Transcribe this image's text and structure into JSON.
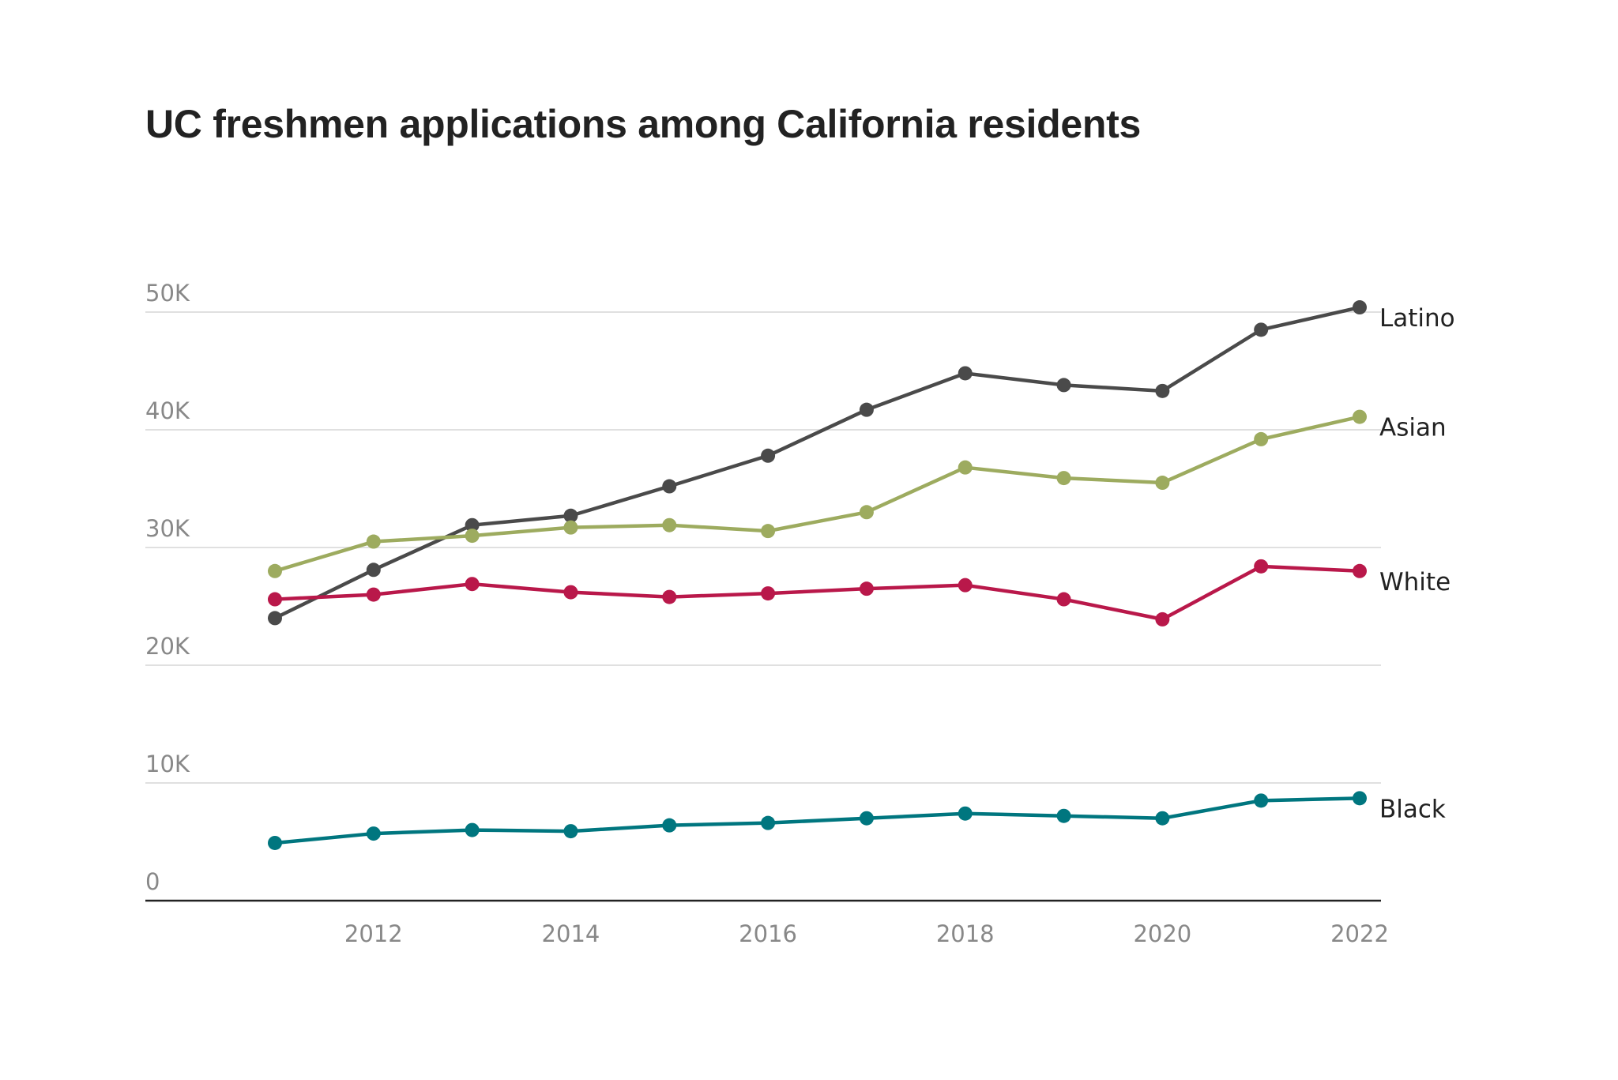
{
  "chart_data": {
    "type": "line",
    "title": "UC freshmen applications among California residents",
    "xlabel": "",
    "ylabel": "",
    "x": [
      2011,
      2012,
      2013,
      2014,
      2015,
      2016,
      2017,
      2018,
      2019,
      2020,
      2021,
      2022
    ],
    "x_ticks": [
      "2012",
      "2014",
      "2016",
      "2018",
      "2020",
      "2022"
    ],
    "y_ticks": [
      "0",
      "10K",
      "20K",
      "30K",
      "40K",
      "50K"
    ],
    "ylim": [
      0,
      50000
    ],
    "grid": true,
    "legend": "direct labels at line ends (right)",
    "series": [
      {
        "name": "Latino",
        "color": "#4a4a4a",
        "values": [
          24000,
          28100,
          31900,
          32700,
          35200,
          37800,
          41700,
          44800,
          43800,
          43300,
          48500,
          50400
        ]
      },
      {
        "name": "Asian",
        "color": "#9dab5f",
        "values": [
          28000,
          30500,
          31000,
          31700,
          31900,
          31400,
          33000,
          36800,
          35900,
          35500,
          39200,
          41100
        ]
      },
      {
        "name": "White",
        "color": "#b9184a",
        "values": [
          25600,
          26000,
          26900,
          26200,
          25800,
          26100,
          26500,
          26800,
          25600,
          23900,
          28400,
          28000
        ]
      },
      {
        "name": "Black",
        "color": "#00767f",
        "values": [
          4900,
          5700,
          6000,
          5900,
          6400,
          6600,
          7000,
          7400,
          7200,
          7000,
          8500,
          8700
        ]
      }
    ]
  }
}
